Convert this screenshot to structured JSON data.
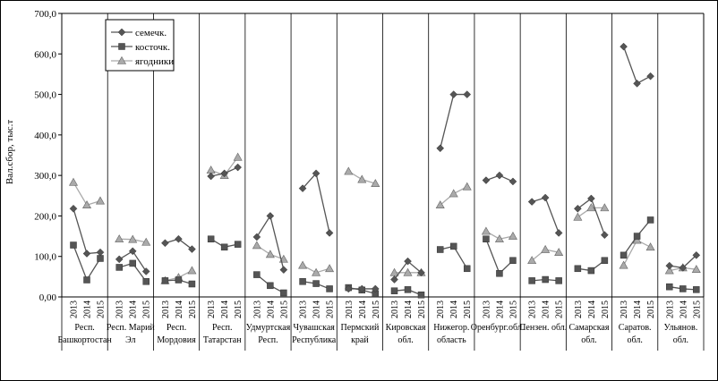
{
  "chart_data": {
    "type": "line",
    "ylabel": "Вал.сбор, тыс.т",
    "xlabel": "",
    "title": "",
    "ylim": [
      0,
      700
    ],
    "yticks": [
      "0,00",
      "100,0",
      "200,0",
      "300,0",
      "400,0",
      "500,0",
      "600,0",
      "700,0"
    ],
    "years": [
      "2013",
      "2014",
      "2015"
    ],
    "grid": "vertical lines between regions",
    "legend_position": "top-left",
    "regions": [
      [
        "Респ.",
        "Башкортостан"
      ],
      [
        "Респ. Марий",
        "Эл"
      ],
      [
        "Респ.",
        "Мордовия"
      ],
      [
        "Респ.",
        "Татарстан"
      ],
      [
        "Удмуртская",
        "Респ."
      ],
      [
        "Чувашская",
        "Республика"
      ],
      [
        "Пермский",
        "край"
      ],
      [
        "Кировская",
        "обл."
      ],
      [
        "Нижегор.",
        "область"
      ],
      [
        "Оренбург.обл.",
        ""
      ],
      [
        "Пензен. обл.",
        ""
      ],
      [
        "Самарская",
        "обл."
      ],
      [
        "Саратов.",
        "обл."
      ],
      [
        "Ульянов.",
        "обл."
      ]
    ],
    "series": [
      {
        "name": "семечк.",
        "marker": "diamond",
        "color": "#555555",
        "values": [
          [
            218,
            107,
            110
          ],
          [
            93,
            113,
            63
          ],
          [
            133,
            143,
            118
          ],
          [
            298,
            305,
            320
          ],
          [
            148,
            200,
            67
          ],
          [
            268,
            305,
            158
          ],
          [
            20,
            20,
            20
          ],
          [
            43,
            88,
            60
          ],
          [
            367,
            500,
            500
          ],
          [
            288,
            300,
            285
          ],
          [
            235,
            245,
            158
          ],
          [
            218,
            243,
            153
          ],
          [
            618,
            527,
            545
          ],
          [
            77,
            72,
            103
          ]
        ]
      },
      {
        "name": "косточк.",
        "marker": "square",
        "color": "#555555",
        "values": [
          [
            128,
            42,
            95
          ],
          [
            73,
            83,
            38
          ],
          [
            40,
            42,
            32
          ],
          [
            143,
            123,
            130
          ],
          [
            55,
            28,
            10
          ],
          [
            38,
            33,
            20
          ],
          [
            23,
            17,
            8
          ],
          [
            15,
            18,
            5
          ],
          [
            117,
            125,
            70
          ],
          [
            143,
            58,
            90
          ],
          [
            40,
            43,
            40
          ],
          [
            70,
            65,
            90
          ],
          [
            103,
            150,
            190
          ],
          [
            25,
            20,
            18
          ]
        ]
      },
      {
        "name": "ягодники",
        "marker": "triangle",
        "color": "#aaaaaa",
        "values": [
          [
            283,
            227,
            237
          ],
          [
            143,
            142,
            135
          ],
          [
            40,
            48,
            65
          ],
          [
            313,
            300,
            345
          ],
          [
            127,
            105,
            93
          ],
          [
            78,
            60,
            70
          ],
          [
            310,
            290,
            280
          ],
          [
            60,
            60,
            60
          ],
          [
            227,
            255,
            272
          ],
          [
            162,
            143,
            150
          ],
          [
            90,
            117,
            110
          ],
          [
            197,
            220,
            220
          ],
          [
            78,
            140,
            123
          ],
          [
            65,
            72,
            68
          ]
        ]
      }
    ]
  }
}
